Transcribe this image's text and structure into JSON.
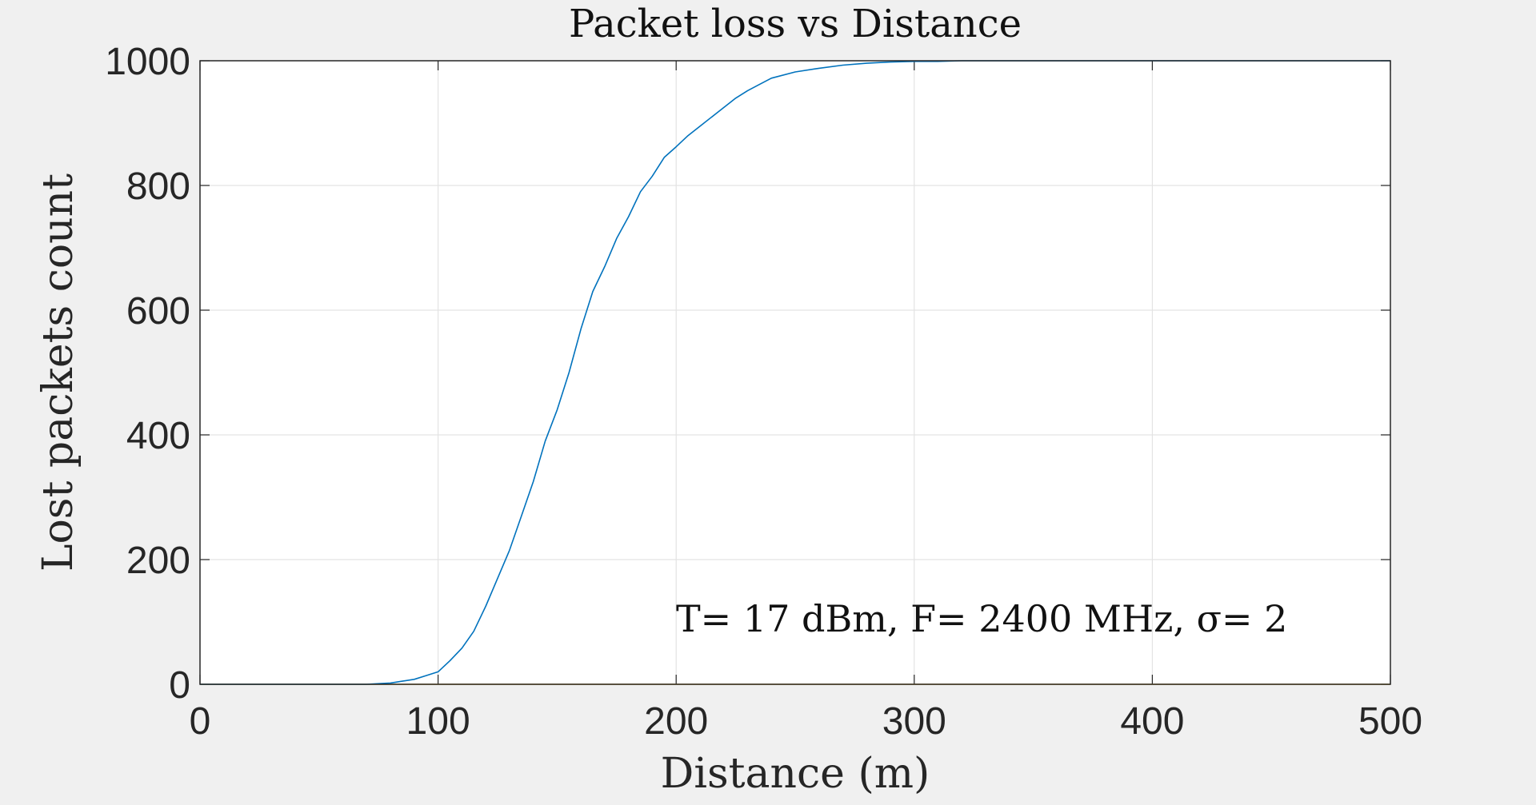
{
  "chart_data": {
    "type": "line",
    "title": "Packet loss vs Distance",
    "xlabel": "Distance (m)",
    "ylabel": "Lost packets count",
    "xlim": [
      0,
      500
    ],
    "ylim": [
      0,
      1000
    ],
    "xticks": [
      0,
      100,
      200,
      300,
      400,
      500
    ],
    "yticks": [
      0,
      200,
      400,
      600,
      800,
      1000
    ],
    "grid": true,
    "annotation": "T= 17 dBm, F= 2400 MHz, σ= 2",
    "series": [
      {
        "color": "#0072BD",
        "x": [
          0,
          60,
          70,
          75,
          80,
          85,
          90,
          95,
          100,
          105,
          110,
          115,
          120,
          125,
          130,
          135,
          140,
          145,
          150,
          155,
          160,
          165,
          170,
          175,
          180,
          185,
          190,
          195,
          200,
          205,
          210,
          215,
          220,
          225,
          230,
          235,
          240,
          250,
          260,
          270,
          280,
          290,
          300,
          310,
          320,
          330,
          340,
          350,
          360,
          380,
          400,
          450,
          500
        ],
        "y": [
          0,
          0,
          0,
          1,
          2,
          5,
          8,
          14,
          20,
          38,
          58,
          85,
          125,
          170,
          215,
          270,
          325,
          390,
          440,
          500,
          570,
          630,
          670,
          715,
          750,
          790,
          815,
          845,
          862,
          880,
          895,
          910,
          925,
          940,
          952,
          962,
          972,
          982,
          988,
          993,
          996,
          998,
          999,
          999,
          1000,
          1000,
          1000,
          1000,
          1000,
          1000,
          1000,
          1000,
          1000
        ]
      },
      {
        "color": "#EDB120",
        "x": [
          0,
          500
        ],
        "y": [
          0,
          0
        ]
      }
    ]
  }
}
